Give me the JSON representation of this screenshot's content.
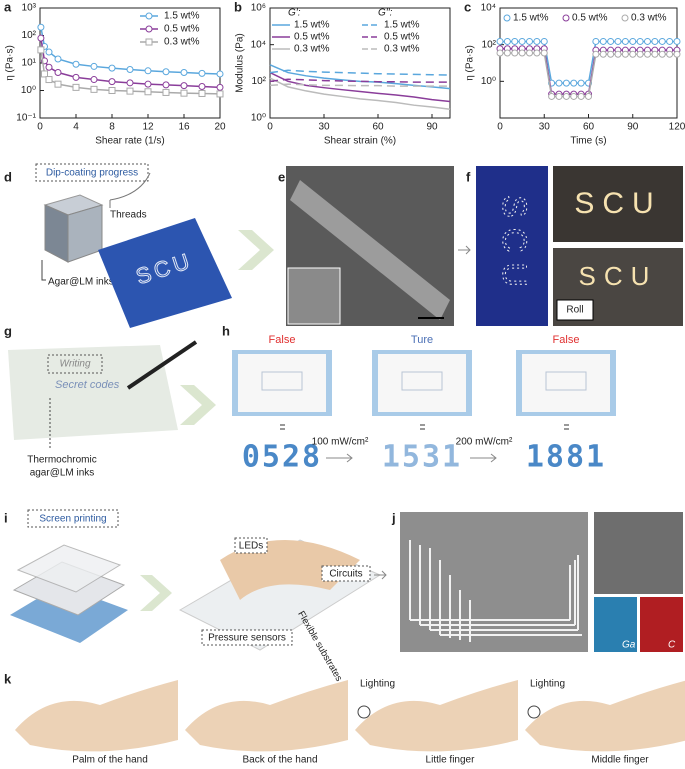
{
  "chart_data": [
    {
      "type": "line",
      "yscale": "log",
      "ylabel": "η (Pa·s)",
      "xlabel": "Shear rate (1/s)",
      "legend": "upper right",
      "xlim": [
        0,
        20
      ],
      "xticks": [
        0,
        4,
        8,
        12,
        16,
        20
      ],
      "ylim": [
        0.1,
        1000
      ],
      "yticks": [
        {
          "value": 0.1,
          "label": "10⁻¹"
        },
        {
          "value": 1,
          "label": "10⁰"
        },
        {
          "value": 10,
          "label": "10¹"
        },
        {
          "value": 100,
          "label": "10²"
        },
        {
          "value": 1000,
          "label": "10³"
        }
      ],
      "x": [
        0.1,
        0.5,
        1,
        2,
        4,
        6,
        8,
        10,
        12,
        14,
        16,
        18,
        20
      ],
      "series": [
        {
          "name": "1.5 wt%",
          "color": "#5aa7dd",
          "marker": "circle",
          "values": [
            200,
            40,
            25,
            14,
            9,
            7.5,
            6.5,
            5.8,
            5.2,
            4.8,
            4.5,
            4.2,
            4.0
          ]
        },
        {
          "name": "0.5 wt%",
          "color": "#8a3d9a",
          "marker": "circle",
          "values": [
            80,
            12,
            7,
            4.5,
            3,
            2.5,
            2.1,
            1.9,
            1.7,
            1.6,
            1.5,
            1.4,
            1.3
          ]
        },
        {
          "name": "0.3 wt%",
          "color": "#aaaaaa",
          "marker": "square",
          "values": [
            30,
            4,
            2.5,
            1.7,
            1.3,
            1.1,
            1.0,
            0.95,
            0.9,
            0.85,
            0.8,
            0.78,
            0.75
          ]
        }
      ]
    },
    {
      "type": "line",
      "yscale": "log",
      "ylabel": "Modulus (Pa)",
      "xlabel": "Shear strain (%)",
      "legend": "upper right",
      "legend_titles": [
        "G':",
        "G'':"
      ],
      "xlim": [
        0,
        100
      ],
      "xticks": [
        0,
        30,
        60,
        90
      ],
      "ylim": [
        1,
        1000000
      ],
      "yticks": [
        {
          "value": 1,
          "label": "10⁰"
        },
        {
          "value": 100,
          "label": "10²"
        },
        {
          "value": 10000,
          "label": "10⁴"
        },
        {
          "value": 1000000,
          "label": "10⁶"
        }
      ],
      "x": [
        0,
        10,
        20,
        30,
        40,
        50,
        60,
        70,
        80,
        90,
        100
      ],
      "series": [
        {
          "name": "1.5 wt%",
          "color": "#5aa7dd",
          "dash": false,
          "values": [
            800,
            300,
            200,
            150,
            120,
            100,
            90,
            75,
            60,
            50,
            40
          ]
        },
        {
          "name": "0.5 wt%",
          "color": "#8a3d9a",
          "dash": false,
          "values": [
            300,
            100,
            60,
            45,
            35,
            28,
            22,
            18,
            14,
            10,
            8
          ]
        },
        {
          "name": "0.3 wt%",
          "color": "#bbbbbb",
          "dash": false,
          "values": [
            150,
            50,
            30,
            20,
            15,
            11,
            9,
            7,
            5,
            4,
            3
          ]
        },
        {
          "name": "1.5 wt%",
          "color": "#5aa7dd",
          "dash": true,
          "values": [
            300,
            400,
            350,
            320,
            300,
            280,
            260,
            250,
            240,
            230,
            220
          ]
        },
        {
          "name": "0.5 wt%",
          "color": "#8a3d9a",
          "dash": true,
          "values": [
            100,
            130,
            120,
            110,
            105,
            100,
            95,
            95,
            90,
            90,
            90
          ]
        },
        {
          "name": "0.3 wt%",
          "color": "#bbbbbb",
          "dash": true,
          "values": [
            60,
            70,
            65,
            60,
            60,
            58,
            58,
            55,
            55,
            55,
            55
          ]
        }
      ]
    },
    {
      "type": "line",
      "yscale": "log",
      "ylabel": "η (Pa·s)",
      "xlabel": "Time (s)",
      "legend": "top",
      "xlim": [
        0,
        120
      ],
      "xticks": [
        0,
        30,
        60,
        90,
        120
      ],
      "ylim": [
        0.01,
        10000
      ],
      "yticks": [
        {
          "value": 1,
          "label": "10⁰"
        },
        {
          "value": 100,
          "label": "10²"
        },
        {
          "value": 10000,
          "label": "10⁴"
        }
      ],
      "x": [
        0,
        5,
        10,
        15,
        20,
        25,
        30,
        35,
        40,
        45,
        50,
        55,
        60,
        65,
        70,
        75,
        80,
        85,
        90,
        95,
        100,
        105,
        110,
        115,
        120
      ],
      "series": [
        {
          "name": "1.5 wt%",
          "color": "#5aa7dd",
          "marker": "circle",
          "values": [
            150,
            150,
            150,
            150,
            150,
            150,
            150,
            0.8,
            0.8,
            0.8,
            0.8,
            0.8,
            0.8,
            150,
            150,
            150,
            150,
            150,
            150,
            150,
            150,
            150,
            150,
            150,
            150
          ]
        },
        {
          "name": "0.5 wt%",
          "color": "#8a3d9a",
          "marker": "circle",
          "values": [
            60,
            60,
            60,
            60,
            60,
            60,
            60,
            0.2,
            0.2,
            0.2,
            0.2,
            0.2,
            0.2,
            50,
            50,
            50,
            50,
            50,
            50,
            50,
            50,
            50,
            50,
            50,
            50
          ]
        },
        {
          "name": "0.3 wt%",
          "color": "#aaaaaa",
          "marker": "circle",
          "values": [
            35,
            35,
            35,
            35,
            35,
            35,
            35,
            0.15,
            0.15,
            0.15,
            0.15,
            0.15,
            0.15,
            30,
            30,
            30,
            30,
            30,
            30,
            30,
            30,
            30,
            30,
            30,
            30
          ]
        }
      ]
    }
  ],
  "panel_labels": [
    "a",
    "b",
    "c",
    "d",
    "e",
    "f",
    "g",
    "h",
    "i",
    "j",
    "k"
  ],
  "d": {
    "title": "Dip-coating progress",
    "threads": "Threads",
    "inks": "Agar@LM inks",
    "letters": "SCU"
  },
  "f": {
    "letters": "SCU",
    "roll": "Roll"
  },
  "g": {
    "writing": "Writing",
    "secret": "Secret codes",
    "ink1": "Thermochromic",
    "ink2": "agar@LM inks"
  },
  "h": {
    "states": [
      "False",
      "Ture",
      "False"
    ],
    "powers": [
      "100 mW/cm²",
      "200 mW/cm²"
    ],
    "codes": [
      "0528",
      "1531",
      "1881"
    ]
  },
  "i": {
    "title": "Screen printing",
    "leds": "LEDs",
    "circuits": "Circuits",
    "sensors": "Pressure sensors",
    "substrates": "Flexible substrates"
  },
  "j": {
    "elements": [
      "Ga",
      "C"
    ]
  },
  "k": {
    "captions": [
      "Palm of the hand",
      "Back of the hand",
      "Little finger",
      "Middle finger"
    ],
    "lighting": [
      "Lighting",
      "Lighting"
    ]
  }
}
